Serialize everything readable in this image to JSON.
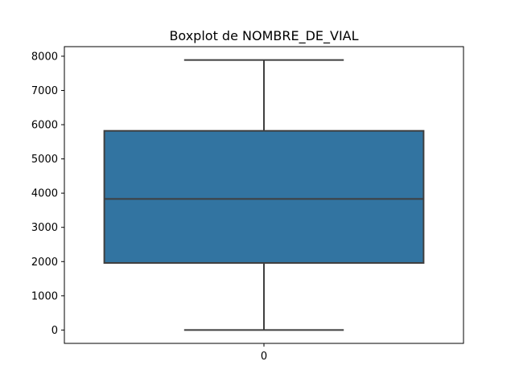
{
  "chart_data": {
    "type": "boxplot",
    "title": "Boxplot de NOMBRE_DE_VIAL",
    "xlabel": "",
    "ylabel": "",
    "categories": [
      "0"
    ],
    "boxes": [
      {
        "category": "0",
        "whisker_low": 0,
        "q1": 1960,
        "median": 3830,
        "q3": 5820,
        "whisker_high": 7890
      }
    ],
    "ylim": [
      -390,
      8280
    ],
    "yticks": [
      0,
      1000,
      2000,
      3000,
      4000,
      5000,
      6000,
      7000,
      8000
    ],
    "grid": false,
    "colors": {
      "box_fill": "#3274a1",
      "lines": "#3f3f3f",
      "axes": "#000000"
    }
  }
}
